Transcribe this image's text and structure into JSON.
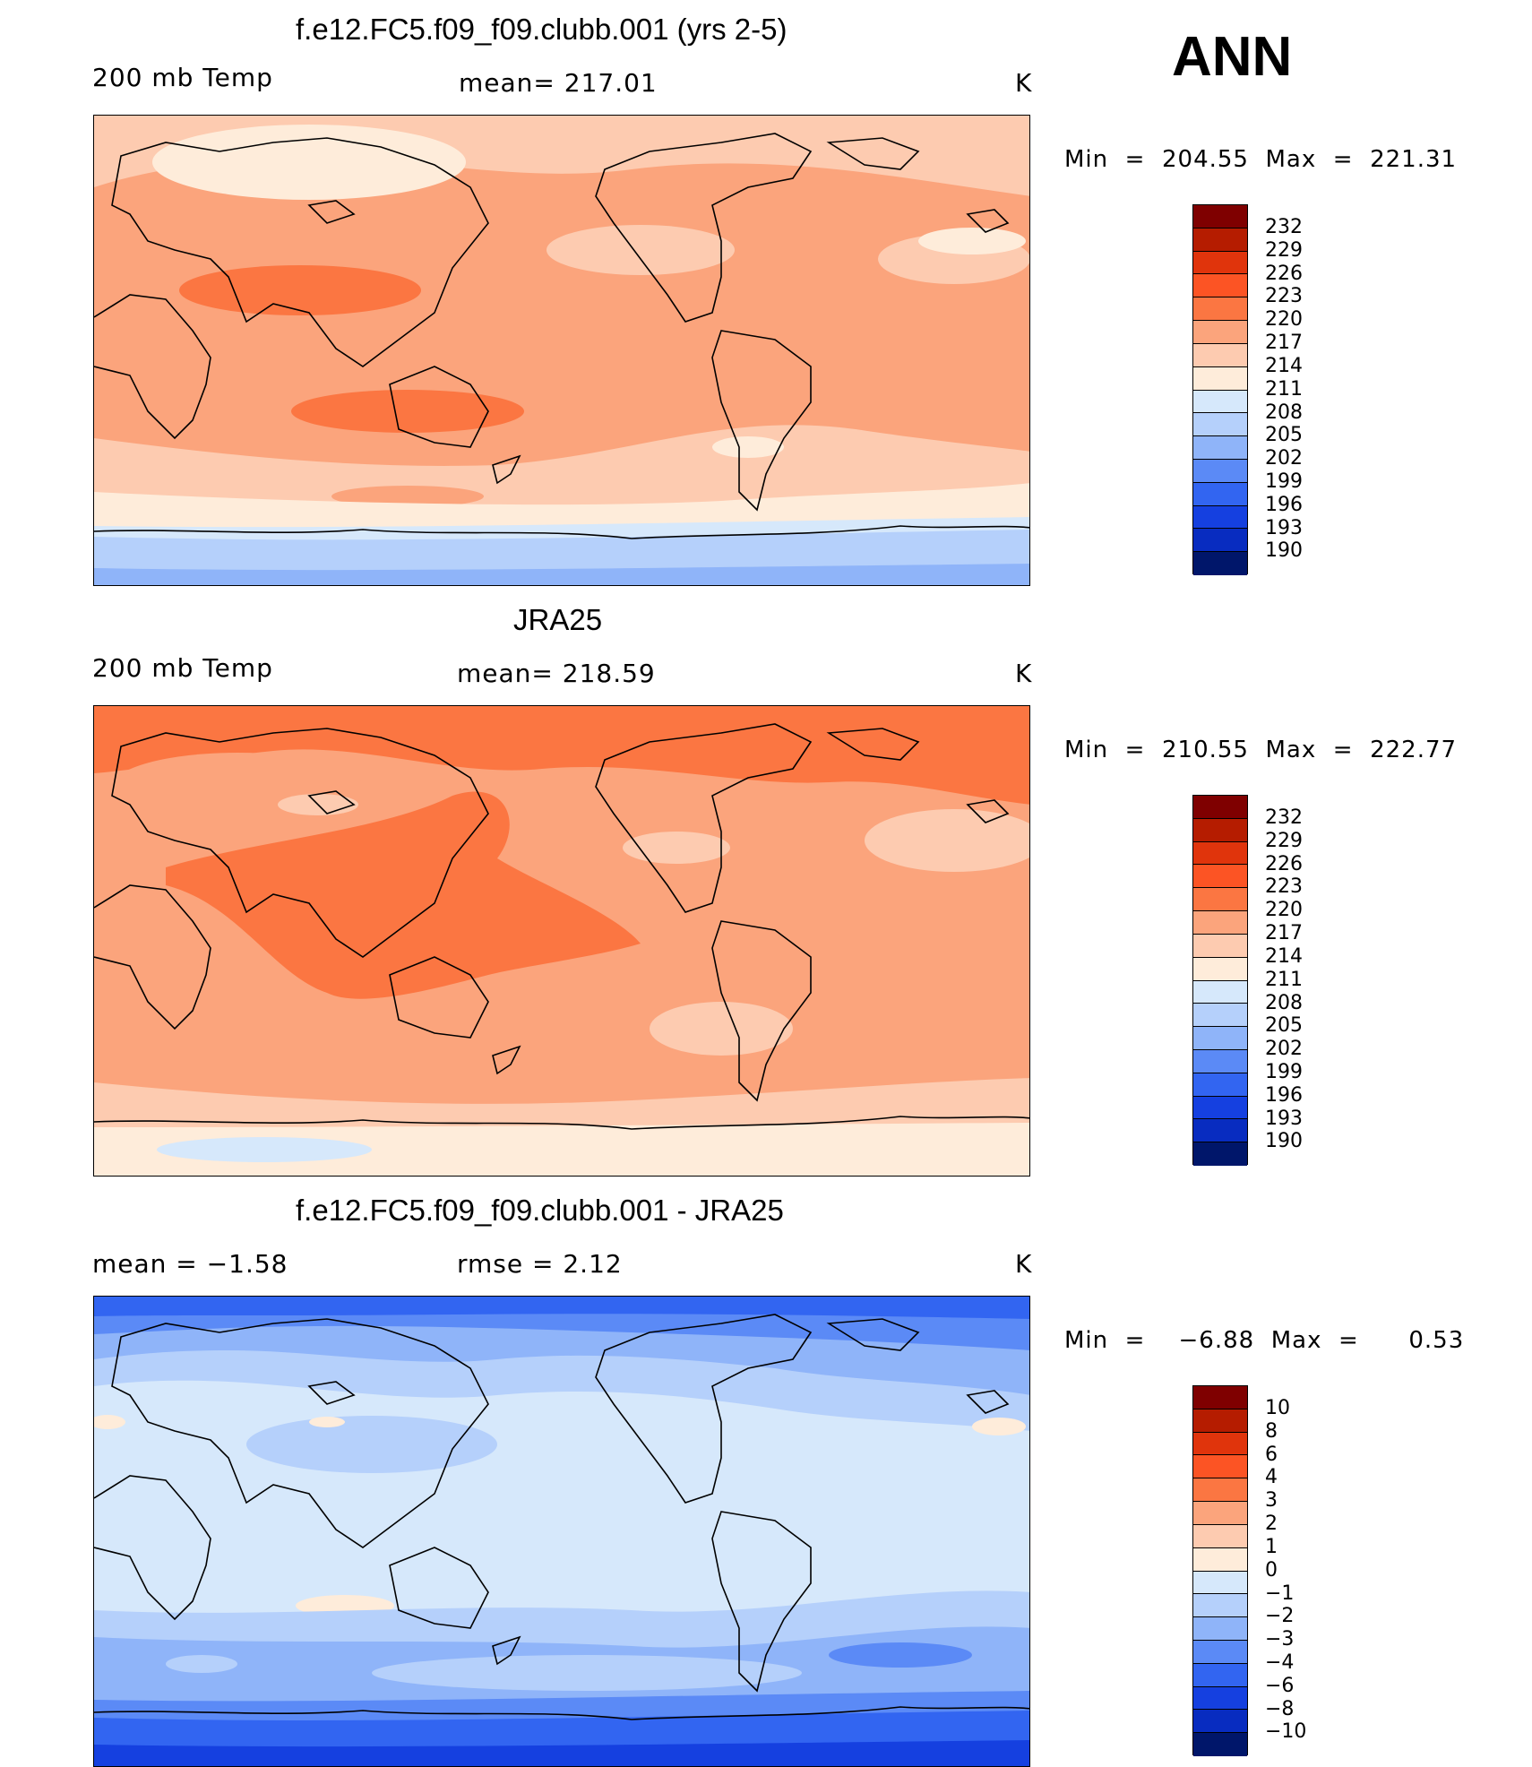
{
  "season": "ANN",
  "panels": [
    {
      "title": "f.e12.FC5.f09_f09.clubb.001 (yrs 2-5)",
      "left_label": "200 mb Temp",
      "center_label": "mean=  217.01",
      "units": "K",
      "minmax": "Min  =  204.55  Max  =  221.31",
      "colorbar_labels": [
        "232",
        "229",
        "226",
        "223",
        "220",
        "217",
        "214",
        "211",
        "208",
        "205",
        "202",
        "199",
        "196",
        "193",
        "190"
      ]
    },
    {
      "title": "JRA25",
      "left_label": "200 mb Temp",
      "center_label": "mean=  218.59",
      "units": "K",
      "minmax": "Min  =  210.55  Max  =  222.77",
      "colorbar_labels": [
        "232",
        "229",
        "226",
        "223",
        "220",
        "217",
        "214",
        "211",
        "208",
        "205",
        "202",
        "199",
        "196",
        "193",
        "190"
      ]
    },
    {
      "title": "f.e12.FC5.f09_f09.clubb.001 - JRA25",
      "left_label": "mean  =    −1.58",
      "center_label": "rmse  =     2.12",
      "units": "K",
      "minmax": "Min  =    −6.88  Max  =      0.53",
      "colorbar_labels": [
        "10",
        "8",
        "6",
        "4",
        "3",
        "2",
        "1",
        "0",
        "−1",
        "−2",
        "−3",
        "−4",
        "−6",
        "−8",
        "−10"
      ]
    }
  ],
  "colors": {
    "colorbar": [
      "#7f0000",
      "#b51c00",
      "#e0340c",
      "#fc5424",
      "#fb7642",
      "#fba47c",
      "#fdcbb0",
      "#feecda",
      "#d6e8fb",
      "#b5d0fb",
      "#8fb4f9",
      "#5b8af6",
      "#3265f1",
      "#1540e0",
      "#082cc0",
      "#00166a"
    ]
  }
}
